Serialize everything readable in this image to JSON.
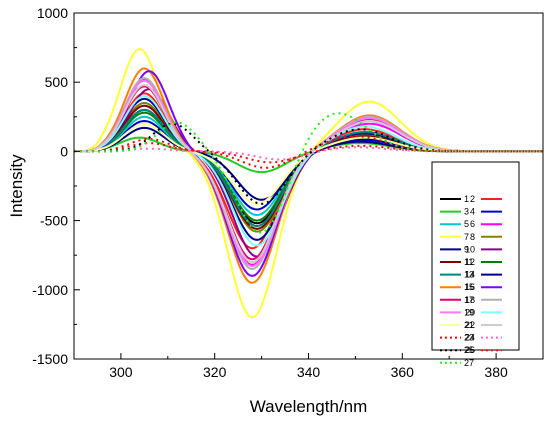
{
  "chart_data": {
    "type": "line",
    "title": "",
    "xlabel": "Wavelength/nm",
    "ylabel": "Intensity",
    "xlim": [
      290,
      390
    ],
    "ylim": [
      -1500,
      1000
    ],
    "xticks": [
      300,
      320,
      340,
      360,
      380
    ],
    "yticks": [
      -1500,
      -1000,
      -500,
      0,
      500,
      1000
    ],
    "grid": false,
    "legend_position": "right",
    "series": [
      {
        "name": "1",
        "color": "#000000",
        "dash": "solid",
        "pos_peak": 300,
        "pos_wl": 305,
        "neg_peak": -520,
        "neg_wl": 329,
        "late_peak": 90,
        "late_wl": 352
      },
      {
        "name": "2",
        "color": "#ff2020",
        "dash": "solid",
        "pos_peak": 420,
        "pos_wl": 305,
        "neg_peak": -700,
        "neg_wl": 328,
        "late_peak": 160,
        "late_wl": 352
      },
      {
        "name": "3",
        "color": "#22cc22",
        "dash": "solid",
        "pos_peak": 100,
        "pos_wl": 304,
        "neg_peak": -150,
        "neg_wl": 330,
        "late_peak": 60,
        "late_wl": 351
      },
      {
        "name": "4",
        "color": "#0000cc",
        "dash": "solid",
        "pos_peak": 220,
        "pos_wl": 305,
        "neg_peak": -420,
        "neg_wl": 329,
        "late_peak": 80,
        "late_wl": 352
      },
      {
        "name": "5",
        "color": "#00c8c8",
        "dash": "solid",
        "pos_peak": 250,
        "pos_wl": 305,
        "neg_peak": -460,
        "neg_wl": 329,
        "late_peak": 100,
        "late_wl": 352
      },
      {
        "name": "6",
        "color": "#ff00ff",
        "dash": "solid",
        "pos_peak": 520,
        "pos_wl": 305,
        "neg_peak": -820,
        "neg_wl": 328,
        "late_peak": 200,
        "late_wl": 353
      },
      {
        "name": "7",
        "color": "#ffff33",
        "dash": "solid",
        "pos_peak": 740,
        "pos_wl": 304,
        "neg_peak": -1200,
        "neg_wl": 328,
        "late_peak": 360,
        "late_wl": 353
      },
      {
        "name": "8",
        "color": "#808000",
        "dash": "solid",
        "pos_peak": 350,
        "pos_wl": 305,
        "neg_peak": -580,
        "neg_wl": 329,
        "late_peak": 120,
        "late_wl": 352
      },
      {
        "name": "9",
        "color": "#000090",
        "dash": "solid",
        "pos_peak": 380,
        "pos_wl": 305,
        "neg_peak": -640,
        "neg_wl": 329,
        "late_peak": 130,
        "late_wl": 352
      },
      {
        "name": "10",
        "color": "#8b008b",
        "dash": "solid",
        "pos_peak": 450,
        "pos_wl": 306,
        "neg_peak": -760,
        "neg_wl": 329,
        "late_peak": 220,
        "late_wl": 353
      },
      {
        "name": "11",
        "color": "#800000",
        "dash": "solid",
        "pos_peak": 330,
        "pos_wl": 305,
        "neg_peak": -560,
        "neg_wl": 329,
        "late_peak": 110,
        "late_wl": 352
      },
      {
        "name": "12",
        "color": "#008000",
        "dash": "solid",
        "pos_peak": 280,
        "pos_wl": 305,
        "neg_peak": -500,
        "neg_wl": 329,
        "late_peak": 100,
        "late_wl": 352
      },
      {
        "name": "13",
        "color": "#008080",
        "dash": "solid",
        "pos_peak": 300,
        "pos_wl": 305,
        "neg_peak": -540,
        "neg_wl": 329,
        "late_peak": 140,
        "late_wl": 352
      },
      {
        "name": "14",
        "color": "#000080",
        "dash": "solid",
        "pos_peak": 170,
        "pos_wl": 305,
        "neg_peak": -350,
        "neg_wl": 330,
        "late_peak": 70,
        "late_wl": 351
      },
      {
        "name": "15",
        "color": "#ff7f00",
        "dash": "solid",
        "pos_peak": 600,
        "pos_wl": 305,
        "neg_peak": -950,
        "neg_wl": 328,
        "late_peak": 260,
        "late_wl": 353
      },
      {
        "name": "16",
        "color": "#7f00ff",
        "dash": "solid",
        "pos_peak": 580,
        "pos_wl": 306,
        "neg_peak": -900,
        "neg_wl": 328,
        "late_peak": 240,
        "late_wl": 353
      },
      {
        "name": "17",
        "color": "#e0006a",
        "dash": "solid",
        "pos_peak": 470,
        "pos_wl": 305,
        "neg_peak": -780,
        "neg_wl": 328,
        "late_peak": 230,
        "late_wl": 353
      },
      {
        "name": "18",
        "color": "#b0b0b0",
        "dash": "solid",
        "pos_peak": 530,
        "pos_wl": 305,
        "neg_peak": -850,
        "neg_wl": 328,
        "late_peak": 250,
        "late_wl": 353
      },
      {
        "name": "19",
        "color": "#ff77ff",
        "dash": "solid",
        "pos_peak": 510,
        "pos_wl": 305,
        "neg_peak": -830,
        "neg_wl": 328,
        "late_peak": 240,
        "late_wl": 353
      },
      {
        "name": "20",
        "color": "#80ffff",
        "dash": "solid",
        "pos_peak": 400,
        "pos_wl": 305,
        "neg_peak": -680,
        "neg_wl": 329,
        "late_peak": 180,
        "late_wl": 352
      },
      {
        "name": "21",
        "color": "#ffff99",
        "dash": "solid",
        "pos_peak": 200,
        "pos_wl": 305,
        "neg_peak": -380,
        "neg_wl": 329,
        "late_peak": 100,
        "late_wl": 352
      },
      {
        "name": "22",
        "color": "#cccccc",
        "dash": "solid",
        "pos_peak": 480,
        "pos_wl": 305,
        "neg_peak": -800,
        "neg_wl": 328,
        "late_peak": 220,
        "late_wl": 353
      },
      {
        "name": "23",
        "color": "#ff0000",
        "dash": "dot",
        "pos_peak": 60,
        "pos_wl": 306,
        "neg_peak": -80,
        "neg_wl": 332,
        "late_peak": 40,
        "late_wl": 351
      },
      {
        "name": "24",
        "color": "#ff66cc",
        "dash": "dot",
        "pos_peak": 20,
        "pos_wl": 306,
        "neg_peak": -60,
        "neg_wl": 334,
        "late_peak": 30,
        "late_wl": 350
      },
      {
        "name": "25",
        "color": "#000000",
        "dash": "dot",
        "pos_peak": 200,
        "pos_wl": 311,
        "neg_peak": -380,
        "neg_wl": 330,
        "late_peak": 160,
        "late_wl": 351
      },
      {
        "name": "26",
        "color": "#ff0000",
        "dash": "dot",
        "pos_peak": 90,
        "pos_wl": 306,
        "neg_peak": -120,
        "neg_wl": 331,
        "late_peak": 110,
        "late_wl": 350
      },
      {
        "name": "27",
        "color": "#22ee22",
        "dash": "dot",
        "pos_peak": 210,
        "pos_wl": 312,
        "neg_peak": -600,
        "neg_wl": 330,
        "late_peak": 280,
        "late_wl": 346
      }
    ]
  }
}
